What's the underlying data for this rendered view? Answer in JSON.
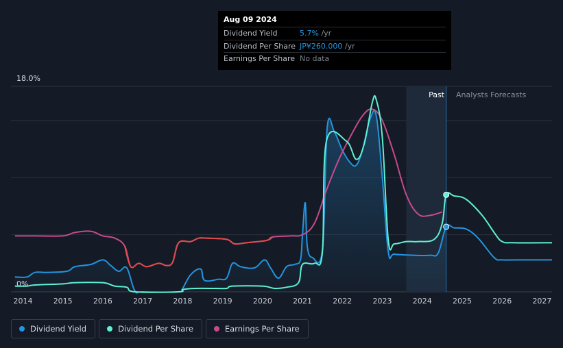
{
  "tooltip": {
    "date": "Aug 09 2024",
    "rows": [
      {
        "label": "Dividend Yield",
        "value": "5.7%",
        "unit": " /yr",
        "color": "#2394df"
      },
      {
        "label": "Dividend Per Share",
        "value": "JP¥260.000",
        "unit": " /yr",
        "color": "#2394df"
      },
      {
        "label": "Earnings Per Share",
        "value": "No data",
        "unit": "",
        "color": "#7b8089"
      }
    ]
  },
  "legend": [
    {
      "label": "Dividend Yield",
      "color": "#2394df"
    },
    {
      "label": "Dividend Per Share",
      "color": "#5ef0d2"
    },
    {
      "label": "Earnings Per Share",
      "color": "#c74b8c"
    }
  ],
  "chart_data": {
    "type": "line",
    "y_top_label": "18.0%",
    "y_bottom_label": "0%",
    "ylim": [
      0,
      18
    ],
    "xlim": [
      2013.7,
      2027.25
    ],
    "x_ticks": [
      "2014",
      "2015",
      "2016",
      "2017",
      "2018",
      "2019",
      "2020",
      "2021",
      "2022",
      "2023",
      "2024",
      "2025",
      "2026",
      "2027"
    ],
    "past_label": "Past",
    "forecast_label": "Analysts Forecasts",
    "forecast_start": 2023.6,
    "today": 2024.6,
    "series": [
      {
        "name": "Dividend Yield",
        "color": "#2394df",
        "fill": true,
        "points": [
          [
            2013.8,
            1.3
          ],
          [
            2014.1,
            1.3
          ],
          [
            2014.3,
            1.7
          ],
          [
            2014.6,
            1.7
          ],
          [
            2015.1,
            1.8
          ],
          [
            2015.3,
            2.2
          ],
          [
            2015.7,
            2.4
          ],
          [
            2016.0,
            2.8
          ],
          [
            2016.2,
            2.3
          ],
          [
            2016.4,
            1.8
          ],
          [
            2016.6,
            2.1
          ],
          [
            2016.8,
            0.1
          ],
          [
            2017.0,
            0.0
          ],
          [
            2017.9,
            0.0
          ],
          [
            2018.0,
            0.3
          ],
          [
            2018.2,
            1.5
          ],
          [
            2018.45,
            2.0
          ],
          [
            2018.55,
            1.0
          ],
          [
            2018.9,
            1.1
          ],
          [
            2019.1,
            1.2
          ],
          [
            2019.25,
            2.5
          ],
          [
            2019.45,
            2.2
          ],
          [
            2019.8,
            2.1
          ],
          [
            2020.05,
            2.8
          ],
          [
            2020.2,
            2.1
          ],
          [
            2020.4,
            1.2
          ],
          [
            2020.6,
            2.2
          ],
          [
            2020.8,
            2.4
          ],
          [
            2020.95,
            2.8
          ],
          [
            2021.0,
            5.0
          ],
          [
            2021.07,
            7.8
          ],
          [
            2021.12,
            4.0
          ],
          [
            2021.25,
            3.0
          ],
          [
            2021.5,
            3.7
          ],
          [
            2021.62,
            14.4
          ],
          [
            2021.8,
            14.0
          ],
          [
            2022.0,
            12.4
          ],
          [
            2022.2,
            11.3
          ],
          [
            2022.35,
            11.1
          ],
          [
            2022.5,
            12.4
          ],
          [
            2022.7,
            15.2
          ],
          [
            2022.85,
            15.4
          ],
          [
            2023.0,
            10.0
          ],
          [
            2023.15,
            3.5
          ],
          [
            2023.3,
            3.3
          ],
          [
            2023.8,
            3.2
          ],
          [
            2024.2,
            3.2
          ],
          [
            2024.4,
            3.4
          ],
          [
            2024.6,
            5.7
          ],
          [
            2024.8,
            5.6
          ],
          [
            2025.1,
            5.5
          ],
          [
            2025.4,
            4.7
          ],
          [
            2025.8,
            3.0
          ],
          [
            2026.0,
            2.8
          ],
          [
            2026.4,
            2.8
          ],
          [
            2027.25,
            2.8
          ]
        ]
      },
      {
        "name": "Dividend Per Share",
        "color": "#5ef0d2",
        "fill": false,
        "points": [
          [
            2013.8,
            0.5
          ],
          [
            2014.1,
            0.5
          ],
          [
            2014.3,
            0.6
          ],
          [
            2015.0,
            0.7
          ],
          [
            2015.3,
            0.8
          ],
          [
            2016.0,
            0.8
          ],
          [
            2016.3,
            0.5
          ],
          [
            2016.6,
            0.4
          ],
          [
            2016.8,
            0.0
          ],
          [
            2017.9,
            0.0
          ],
          [
            2018.0,
            0.2
          ],
          [
            2018.3,
            0.3
          ],
          [
            2018.8,
            0.3
          ],
          [
            2019.1,
            0.3
          ],
          [
            2019.25,
            0.5
          ],
          [
            2020.0,
            0.5
          ],
          [
            2020.3,
            0.3
          ],
          [
            2020.6,
            0.4
          ],
          [
            2020.9,
            0.8
          ],
          [
            2021.0,
            2.4
          ],
          [
            2021.3,
            2.5
          ],
          [
            2021.5,
            3.5
          ],
          [
            2021.6,
            13.2
          ],
          [
            2022.1,
            13.2
          ],
          [
            2022.35,
            11.6
          ],
          [
            2022.55,
            13.0
          ],
          [
            2022.75,
            16.6
          ],
          [
            2022.85,
            16.8
          ],
          [
            2023.0,
            13.5
          ],
          [
            2023.15,
            4.5
          ],
          [
            2023.3,
            4.2
          ],
          [
            2023.6,
            4.4
          ],
          [
            2023.9,
            4.4
          ],
          [
            2024.3,
            4.6
          ],
          [
            2024.5,
            6.0
          ],
          [
            2024.6,
            8.5
          ],
          [
            2024.8,
            8.4
          ],
          [
            2025.1,
            8.1
          ],
          [
            2025.5,
            6.7
          ],
          [
            2025.8,
            5.2
          ],
          [
            2026.0,
            4.4
          ],
          [
            2026.3,
            4.3
          ],
          [
            2027.25,
            4.3
          ]
        ]
      },
      {
        "name": "Earnings Per Share",
        "color": "#c74b8c",
        "fill": false,
        "points": [
          [
            2013.8,
            4.9
          ],
          [
            2014.0,
            4.9
          ],
          [
            2014.3,
            4.9
          ],
          [
            2015.0,
            4.9
          ],
          [
            2015.3,
            5.2
          ],
          [
            2015.7,
            5.3
          ],
          [
            2016.0,
            4.9
          ],
          [
            2016.3,
            4.7
          ],
          [
            2016.55,
            4.0
          ],
          [
            2016.7,
            2.2
          ],
          [
            2016.9,
            2.5
          ],
          [
            2017.1,
            2.2
          ],
          [
            2017.4,
            2.5
          ],
          [
            2017.6,
            2.3
          ],
          [
            2017.75,
            2.6
          ],
          [
            2017.9,
            4.3
          ],
          [
            2018.2,
            4.4
          ],
          [
            2018.4,
            4.7
          ],
          [
            2018.6,
            4.7
          ],
          [
            2019.1,
            4.6
          ],
          [
            2019.3,
            4.2
          ],
          [
            2019.6,
            4.3
          ],
          [
            2020.1,
            4.5
          ],
          [
            2020.25,
            4.8
          ],
          [
            2020.7,
            4.9
          ],
          [
            2021.0,
            5.0
          ],
          [
            2021.3,
            6.0
          ],
          [
            2021.6,
            8.9
          ],
          [
            2021.9,
            11.5
          ],
          [
            2022.2,
            13.6
          ],
          [
            2022.5,
            15.4
          ],
          [
            2022.75,
            16.0
          ],
          [
            2023.0,
            15.0
          ],
          [
            2023.3,
            12.0
          ],
          [
            2023.6,
            8.5
          ],
          [
            2023.9,
            6.8
          ],
          [
            2024.2,
            6.7
          ],
          [
            2024.5,
            7.0
          ]
        ]
      }
    ]
  }
}
